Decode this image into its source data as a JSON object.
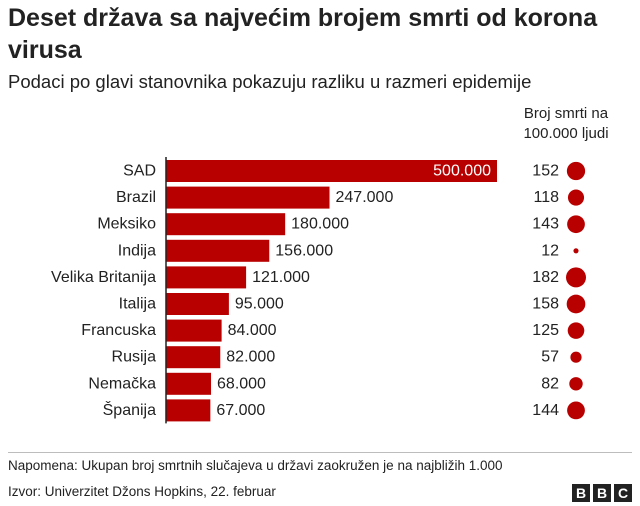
{
  "title": "Deset država sa najvećim brojem smrti od korona virusa",
  "subtitle": "Podaci po glavi stanovnika pokazuju razliku u razmeri epidemije",
  "rate_header_line1": "Broj smrti na",
  "rate_header_line2": "100.000 ljudi",
  "note": "Napomena: Ukupan broj smrtnih slučajeva u državi zaokružen je na najbližih 1.000",
  "source": "Izvor: Univerzitet Džons Hopkins, 22. februar",
  "logo": [
    "B",
    "B",
    "C"
  ],
  "colors": {
    "bar": "#b80000",
    "dot": "#b80000",
    "axis": "#222222"
  },
  "chart_data": {
    "type": "bar",
    "orientation": "horizontal",
    "categories": [
      "SAD",
      "Brazil",
      "Meksiko",
      "Indija",
      "Velika Britanija",
      "Italija",
      "Francuska",
      "Rusija",
      "Nemačka",
      "Španija"
    ],
    "values": [
      500000,
      247000,
      180000,
      156000,
      121000,
      95000,
      84000,
      82000,
      68000,
      67000
    ],
    "value_labels": [
      "500.000",
      "247.000",
      "180.000",
      "156.000",
      "121.000",
      "95.000",
      "84.000",
      "82.000",
      "68.000",
      "67.000"
    ],
    "deaths_per_100k": [
      152,
      118,
      143,
      12,
      182,
      158,
      125,
      57,
      82,
      144
    ],
    "xlim": [
      0,
      500000
    ],
    "grid": false
  }
}
